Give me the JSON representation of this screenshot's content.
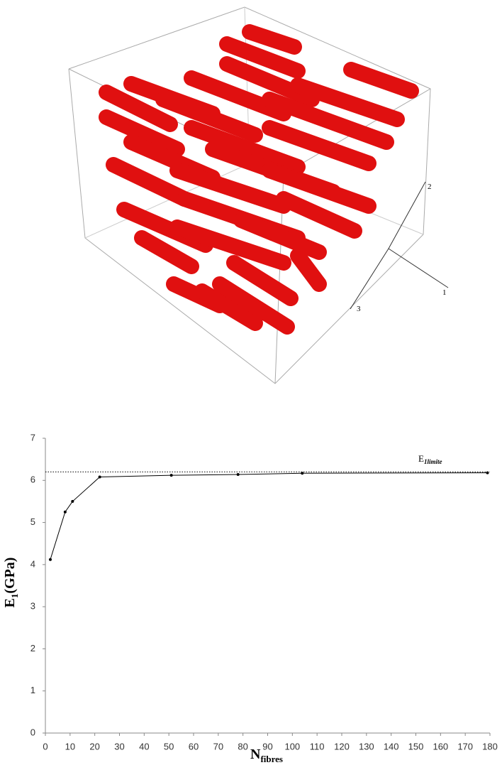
{
  "figure_labels": {
    "axis_1": "1",
    "axis_2": "2",
    "axis_3": "3"
  },
  "chart_data": {
    "type": "line",
    "x": [
      2,
      8,
      11,
      22,
      51,
      78,
      104,
      179
    ],
    "series": [
      {
        "color": "#000000",
        "values": [
          4.12,
          5.25,
          5.5,
          6.08,
          6.12,
          6.14,
          6.17,
          6.18
        ]
      }
    ],
    "xlim": [
      0,
      180
    ],
    "xticks": [
      0,
      10,
      20,
      30,
      40,
      50,
      60,
      70,
      80,
      90,
      100,
      110,
      120,
      130,
      140,
      150,
      160,
      170,
      180
    ],
    "ylim": [
      0,
      7
    ],
    "yticks": [
      0,
      1,
      2,
      3,
      4,
      5,
      6,
      7
    ],
    "xlabel": {
      "main": "N",
      "sub": "fibres"
    },
    "ylabel": {
      "main": "E",
      "sub": "1",
      "rest": "(GPa)"
    },
    "reference_line": {
      "value": 6.2,
      "label_main": "E",
      "label_sub": "1limite"
    },
    "grid": false
  }
}
